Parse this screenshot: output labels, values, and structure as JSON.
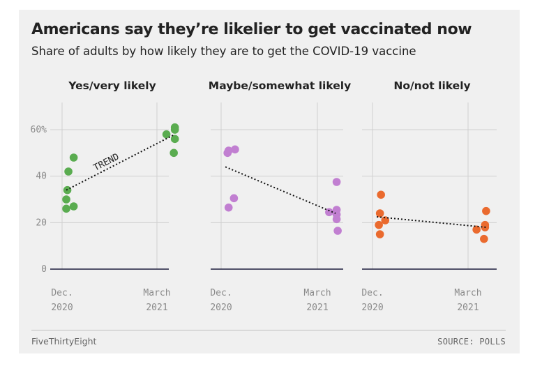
{
  "header": {
    "title": "Americans say they’re likelier to get vaccinated now",
    "subtitle": "Share of adults by how likely they are to get the COVID-19 vaccine"
  },
  "footer": {
    "credit": "FiveThirtyEight",
    "source": "SOURCE: POLLS"
  },
  "colors": {
    "yes": "#5aac50",
    "maybe": "#c17fd1",
    "no": "#ea6a2e"
  },
  "chart_data": {
    "type": "scatter",
    "x_unit": "date",
    "ylim": [
      0,
      60
    ],
    "y_ticks": [
      0,
      20,
      40,
      60
    ],
    "y_tick_labels": [
      "0",
      "20",
      "40",
      "60%"
    ],
    "x_ticks": [
      {
        "date": "2020-12-01",
        "label_top": "Dec.",
        "label_bottom": "2020"
      },
      {
        "date": "2021-03-01",
        "label_top": "March",
        "label_bottom": "2021"
      }
    ],
    "grid": true,
    "panels": [
      {
        "name": "Yes/very likely",
        "color_key": "yes",
        "points": [
          {
            "date": "2020-12-05",
            "value": 26
          },
          {
            "date": "2020-12-05",
            "value": 30
          },
          {
            "date": "2020-12-06",
            "value": 34
          },
          {
            "date": "2020-12-07",
            "value": 42
          },
          {
            "date": "2020-12-12",
            "value": 27
          },
          {
            "date": "2020-12-12",
            "value": 48
          },
          {
            "date": "2021-03-10",
            "value": 58
          },
          {
            "date": "2021-03-17",
            "value": 50
          },
          {
            "date": "2021-03-18",
            "value": 56
          },
          {
            "date": "2021-03-18",
            "value": 60
          },
          {
            "date": "2021-03-18",
            "value": 61
          }
        ],
        "trend": {
          "start": {
            "date": "2020-12-05",
            "value": 34
          },
          "end": {
            "date": "2021-03-18",
            "value": 58
          }
        },
        "trend_label": "TREND"
      },
      {
        "name": "Maybe/somewhat likely",
        "color_key": "maybe",
        "points": [
          {
            "date": "2020-12-07",
            "value": 50
          },
          {
            "date": "2020-12-08",
            "value": 51
          },
          {
            "date": "2020-12-14",
            "value": 51.5
          },
          {
            "date": "2020-12-08",
            "value": 26.5
          },
          {
            "date": "2020-12-13",
            "value": 30.5
          },
          {
            "date": "2021-03-12",
            "value": 24.5
          },
          {
            "date": "2021-03-19",
            "value": 25.5
          },
          {
            "date": "2021-03-19",
            "value": 23.5
          },
          {
            "date": "2021-03-19",
            "value": 21.5
          },
          {
            "date": "2021-03-19",
            "value": 37.5
          },
          {
            "date": "2021-03-20",
            "value": 16.5
          }
        ],
        "trend": {
          "start": {
            "date": "2020-12-05",
            "value": 44
          },
          "end": {
            "date": "2021-03-18",
            "value": 24
          }
        }
      },
      {
        "name": "No/not likely",
        "color_key": "no",
        "points": [
          {
            "date": "2020-12-07",
            "value": 19
          },
          {
            "date": "2020-12-08",
            "value": 15
          },
          {
            "date": "2020-12-08",
            "value": 24
          },
          {
            "date": "2020-12-09",
            "value": 32
          },
          {
            "date": "2020-12-13",
            "value": 21
          },
          {
            "date": "2021-03-09",
            "value": 17
          },
          {
            "date": "2021-03-16",
            "value": 13
          },
          {
            "date": "2021-03-17",
            "value": 18
          },
          {
            "date": "2021-03-17",
            "value": 19
          },
          {
            "date": "2021-03-18",
            "value": 25
          }
        ],
        "trend": {
          "start": {
            "date": "2020-12-05",
            "value": 22.5
          },
          "end": {
            "date": "2021-03-18",
            "value": 18
          }
        }
      }
    ]
  }
}
